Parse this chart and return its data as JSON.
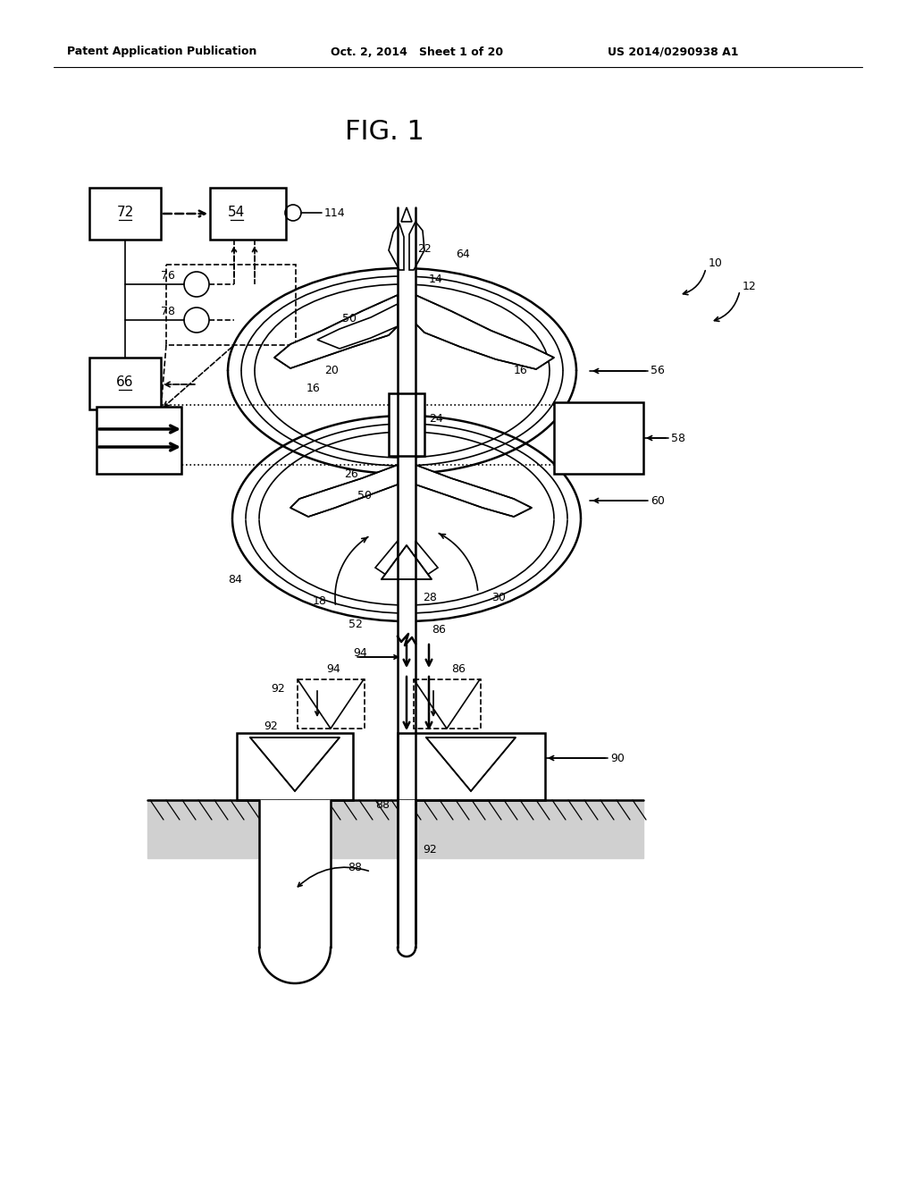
{
  "bg_color": "#ffffff",
  "header_text1": "Patent Application Publication",
  "header_text2": "Oct. 2, 2014   Sheet 1 of 20",
  "header_text3": "US 2014/0290938 A1",
  "fig_title": "FIG. 1"
}
